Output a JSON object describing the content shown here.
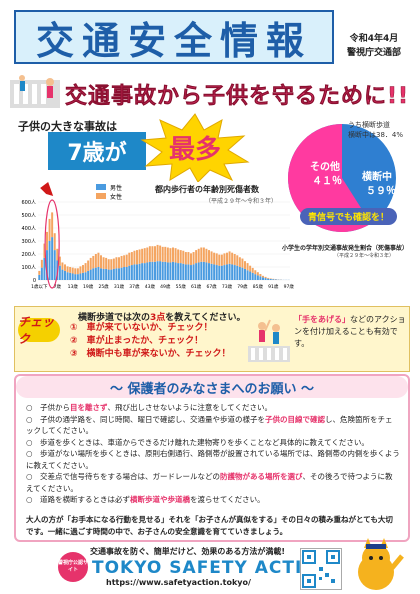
{
  "header": {
    "title": "交通安全情報",
    "date": "令和4年4月",
    "issuer": "警視庁交通部"
  },
  "headline": "交通事故から子供を守るために!!",
  "intro": {
    "lead": "子供の大きな事故は",
    "age": "7歳が",
    "emphasis": "最多"
  },
  "pie": {
    "note_line1": "うち横断歩道",
    "note_line2": "横断中は38．4%",
    "segments": [
      {
        "label": "その他",
        "value_text": "４１％",
        "value": 41,
        "color": "#2f7fd1"
      },
      {
        "label": "横断中",
        "value_text": "５９％",
        "value": 59,
        "color": "#ff3aa0"
      }
    ],
    "confirm": "青信号でも確認を！"
  },
  "chart_data": {
    "type": "bar",
    "title": "都内歩行者の年齢別死傷者数",
    "subtitle": "（平成２９年～令和３年）",
    "side_note": "小学生の学年別交通事故発生割合（死傷事故）",
    "side_note_sub": "（平成２９年～令和３年）",
    "xlabel": "",
    "ylabel": "",
    "ylim": [
      0,
      600
    ],
    "ytick_labels": [
      "0",
      "100人",
      "200人",
      "300人",
      "400人",
      "500人",
      "600人"
    ],
    "xtick_labels": [
      "1歳以下",
      "7歳",
      "13歳",
      "19歳",
      "25歳",
      "31歳",
      "37歳",
      "43歳",
      "49歳",
      "55歳",
      "61歳",
      "67歳",
      "73歳",
      "79歳",
      "85歳",
      "91歳",
      "97歳"
    ],
    "series": [
      {
        "name": "男性",
        "color": "#4a9be0",
        "values": [
          40,
          95,
          170,
          230,
          300,
          330,
          230,
          150,
          110,
          80,
          70,
          60,
          55,
          50,
          45,
          45,
          50,
          55,
          60,
          70,
          80,
          90,
          95,
          100,
          90,
          85,
          85,
          80,
          80,
          85,
          90,
          90,
          95,
          100,
          100,
          110,
          115,
          120,
          120,
          125,
          130,
          130,
          135,
          140,
          140,
          140,
          145,
          145,
          140,
          140,
          135,
          135,
          140,
          135,
          130,
          130,
          125,
          120,
          120,
          115,
          120,
          130,
          135,
          140,
          140,
          135,
          130,
          125,
          120,
          115,
          110,
          110,
          115,
          120,
          125,
          120,
          115,
          110,
          100,
          95,
          85,
          75,
          65,
          55,
          45,
          35,
          28,
          20,
          15,
          10,
          8,
          6,
          4,
          3,
          2,
          1,
          1,
          1
        ]
      },
      {
        "name": "女性",
        "color": "#f4a460",
        "values": [
          30,
          60,
          110,
          140,
          170,
          190,
          130,
          90,
          70,
          55,
          50,
          45,
          45,
          45,
          45,
          45,
          55,
          60,
          70,
          80,
          90,
          95,
          105,
          110,
          100,
          90,
          85,
          80,
          80,
          80,
          85,
          85,
          90,
          90,
          95,
          100,
          100,
          105,
          110,
          110,
          110,
          115,
          115,
          120,
          120,
          120,
          125,
          120,
          115,
          115,
          115,
          110,
          110,
          110,
          105,
          100,
          100,
          95,
          95,
          90,
          95,
          100,
          105,
          110,
          110,
          105,
          100,
          95,
          90,
          90,
          85,
          85,
          90,
          90,
          95,
          90,
          85,
          80,
          75,
          70,
          60,
          55,
          45,
          38,
          30,
          25,
          18,
          12,
          9,
          6,
          4,
          3,
          2,
          1,
          1,
          0,
          0,
          0
        ]
      }
    ],
    "legend_position": "top-left"
  },
  "check": {
    "badge": "チェック",
    "lead": "横断歩道では次の",
    "lead_red": "3点",
    "lead_tail": "を教えてください。",
    "items": [
      "①　車が来ていないか、チェック！",
      "②　車が止まったか、チェック！",
      "③　横断中も車が来ないか、チェック！"
    ],
    "tip_pink": "「手をあげる」",
    "tip_rest": "などのアクションを付け加えることも有効です。"
  },
  "request": {
    "heading": "～ 保護者のみなさまへのお願い ～",
    "items": [
      {
        "pre": "○　子供から",
        "hl": "目を離さず",
        "post": "、飛び出しさせないように注意をしてください。"
      },
      {
        "pre": "○　子供の通学路を、同じ時間、曜日で確認し、交通量や歩道の様子を",
        "hl": "子供の目線で確認",
        "post": "し、危険箇所をチェックしてください。"
      },
      {
        "pre": "○　歩道を歩くときは、車道からできるだけ離れた建物寄りを歩くことなど具体的に教えてください。",
        "hl": "",
        "post": ""
      },
      {
        "pre": "○　歩道がない場所を歩くときは、原則右側通行、路側帯が設置されている場所では、路側帯の内側を歩くように教えてください。",
        "hl": "",
        "post": ""
      },
      {
        "pre": "○　交差点で信号待ちをする場合は、ガードレールなどの",
        "hl": "防護物がある場所を選び",
        "post": "、その後ろで待つように教えてください。"
      },
      {
        "pre": "○　道路を横断するときは必ず",
        "hl": "横断歩道や歩道橋",
        "post": "を渡らせてください。"
      }
    ],
    "closing": "大人の方が「お手本になる行動を見せる」それを「お子さんが真似をする」その日々の積み重ねがとても大切です。一緒に過ごす時間の中で、お子さんの安全意識を育てていきましょう。"
  },
  "footer": {
    "tagline": "交通事故を防ぐ、簡単だけど、効果のある方法が満載!",
    "logo_text": "警視庁公認サイト",
    "brand": "TOKYO SAFETY ACTION",
    "url": "https://www.safetyaction.tokyo/"
  }
}
